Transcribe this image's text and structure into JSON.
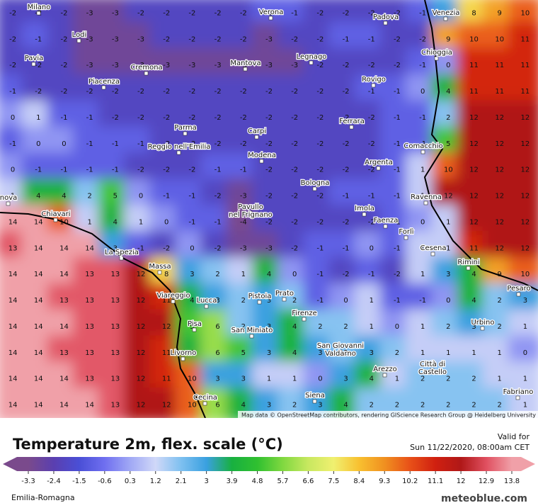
{
  "map": {
    "cities": [
      [
        "Milano"
      ],
      [
        "Verona"
      ],
      [
        "Padova"
      ],
      [
        "Venezia"
      ],
      [
        "Lodi"
      ],
      [
        "Chioggia"
      ],
      [
        "Pavia"
      ],
      [
        "Cremona"
      ],
      [
        "Legnago"
      ],
      [
        "Mantova"
      ],
      [
        "Rovigo"
      ],
      [
        "Piacenza"
      ],
      [
        "Ferrara"
      ],
      [
        "Parma"
      ],
      [
        "Carpi"
      ],
      [
        "Reggio nell'Emilia"
      ],
      [
        "Comacchio"
      ],
      [
        "Modena"
      ],
      [
        "Argenta"
      ],
      [
        "Bologna"
      ],
      [
        "Ravenna"
      ],
      [
        "Chiavari"
      ],
      [
        "Pavullo",
        "nel Frignano"
      ],
      [
        "Imola"
      ],
      [
        "Faenza"
      ],
      [
        "Forlì"
      ],
      [
        "La Spezia"
      ],
      [
        "Cesena"
      ],
      [
        "Massa"
      ],
      [
        "Rimini"
      ],
      [
        "Pesaro"
      ],
      [
        "Viareggio"
      ],
      [
        "Pistoia"
      ],
      [
        "Prato"
      ],
      [
        "Lucca"
      ],
      [
        "Firenze"
      ],
      [
        "Urbino"
      ],
      [
        "Pisa"
      ],
      [
        "San Miniato"
      ],
      [
        "San Giovanni",
        "Valdarno"
      ],
      [
        "Livorno"
      ],
      [
        "Città di",
        "Castello"
      ],
      [
        "Arezzo"
      ],
      [
        "Fabriano"
      ],
      [
        "Siena"
      ],
      [
        "Cecina"
      ],
      [
        "nova"
      ]
    ],
    "grid": [
      [
        -2,
        -2,
        -2,
        -3,
        -3,
        -2,
        -2,
        -2,
        -2,
        -2,
        -1,
        -1,
        -2,
        -2,
        -2,
        -2,
        -1,
        3,
        8,
        9,
        10
      ],
      [
        -2,
        -1,
        -2,
        -3,
        -3,
        -3,
        -2,
        -2,
        -2,
        -2,
        -3,
        -2,
        -2,
        -1,
        -1,
        -2,
        -2,
        9,
        10,
        10,
        11
      ],
      [
        -2,
        -2,
        -2,
        -3,
        -3,
        -3,
        -3,
        -3,
        -3,
        -3,
        -3,
        -3,
        -2,
        -2,
        -2,
        -2,
        -1,
        0,
        11,
        11,
        11
      ],
      [
        -1,
        -2,
        -2,
        -2,
        -2,
        -2,
        -2,
        -2,
        -2,
        -2,
        -2,
        -2,
        -2,
        -2,
        -1,
        -1,
        0,
        4,
        11,
        11,
        11
      ],
      [
        0,
        1,
        -1,
        -1,
        -2,
        -2,
        -2,
        -2,
        -2,
        -2,
        -2,
        -2,
        -2,
        -2,
        -2,
        -1,
        -1,
        2,
        12,
        12,
        12
      ],
      [
        -1,
        0,
        0,
        -1,
        -1,
        -1,
        -2,
        -2,
        -2,
        -2,
        -2,
        -2,
        -2,
        -2,
        -2,
        -1,
        -1,
        5,
        12,
        12,
        12
      ],
      [
        0,
        -1,
        -1,
        -1,
        -1,
        -2,
        -2,
        -2,
        -1,
        -1,
        -2,
        -2,
        -2,
        -2,
        -2,
        -1,
        1,
        10,
        12,
        12,
        12
      ],
      [
        1,
        4,
        4,
        2,
        5,
        0,
        -1,
        -1,
        -2,
        -3,
        -2,
        -2,
        -2,
        -1,
        -1,
        -1,
        1,
        12,
        12,
        12,
        12
      ],
      [
        14,
        14,
        10,
        1,
        4,
        1,
        0,
        -1,
        -1,
        -4,
        -2,
        -2,
        -2,
        -2,
        -2,
        -1,
        0,
        1,
        12,
        12,
        12
      ],
      [
        13,
        14,
        14,
        14,
        3,
        -1,
        -2,
        0,
        -2,
        -3,
        -3,
        -2,
        -1,
        -1,
        0,
        -1,
        1,
        1,
        11,
        12,
        12
      ],
      [
        14,
        14,
        14,
        13,
        13,
        12,
        8,
        3,
        2,
        1,
        4,
        0,
        -1,
        -2,
        -1,
        -2,
        1,
        3,
        4,
        9,
        10
      ],
      [
        14,
        14,
        13,
        13,
        13,
        12,
        11,
        4,
        3,
        2,
        3,
        2,
        -1,
        0,
        1,
        -1,
        -1,
        0,
        4,
        2,
        3
      ],
      [
        14,
        14,
        14,
        13,
        13,
        12,
        12,
        5,
        6,
        2,
        3,
        4,
        2,
        2,
        1,
        0,
        1,
        2,
        3,
        2,
        1
      ],
      [
        14,
        14,
        13,
        13,
        13,
        12,
        11,
        4,
        6,
        5,
        3,
        4,
        3,
        2,
        3,
        2,
        1,
        1,
        1,
        1,
        0
      ],
      [
        14,
        14,
        14,
        13,
        13,
        12,
        11,
        10,
        3,
        3,
        1,
        1,
        0,
        3,
        4,
        1,
        2,
        2,
        2,
        1,
        1
      ],
      [
        14,
        14,
        14,
        14,
        13,
        12,
        12,
        10,
        6,
        4,
        3,
        2,
        3,
        4,
        2,
        2,
        2,
        2,
        2,
        2,
        1
      ]
    ],
    "attribution": "Map data © OpenStreetMap contributors, rendering GIScience Research Group @ Heidelberg University"
  },
  "legend": {
    "title": "Temperature 2m, flex. scale (°C)",
    "valid_label": "Valid for",
    "valid_time": "Sun 11/22/2020, 08:00am CET",
    "ticks": [
      -3.3,
      -2.4,
      -1.5,
      -0.6,
      0.3,
      1.2,
      2.1,
      3,
      3.9,
      4.8,
      5.7,
      6.6,
      7.5,
      8.4,
      9.3,
      10.2,
      11.1,
      12,
      12.9,
      13.8
    ],
    "colors": [
      "#7a4a8c",
      "#5a3fb0",
      "#4a4fd6",
      "#6f6ff0",
      "#a0a8f5",
      "#d0d8f8",
      "#7ec0f0",
      "#3aa0e0",
      "#18b040",
      "#30c030",
      "#80d840",
      "#c8e860",
      "#f0f070",
      "#f8c030",
      "#f09020",
      "#e85018",
      "#d02010",
      "#b01818",
      "#e05060",
      "#f0a0a8"
    ],
    "region": "Emilia-Romagna",
    "brand": "meteoblue.com"
  }
}
